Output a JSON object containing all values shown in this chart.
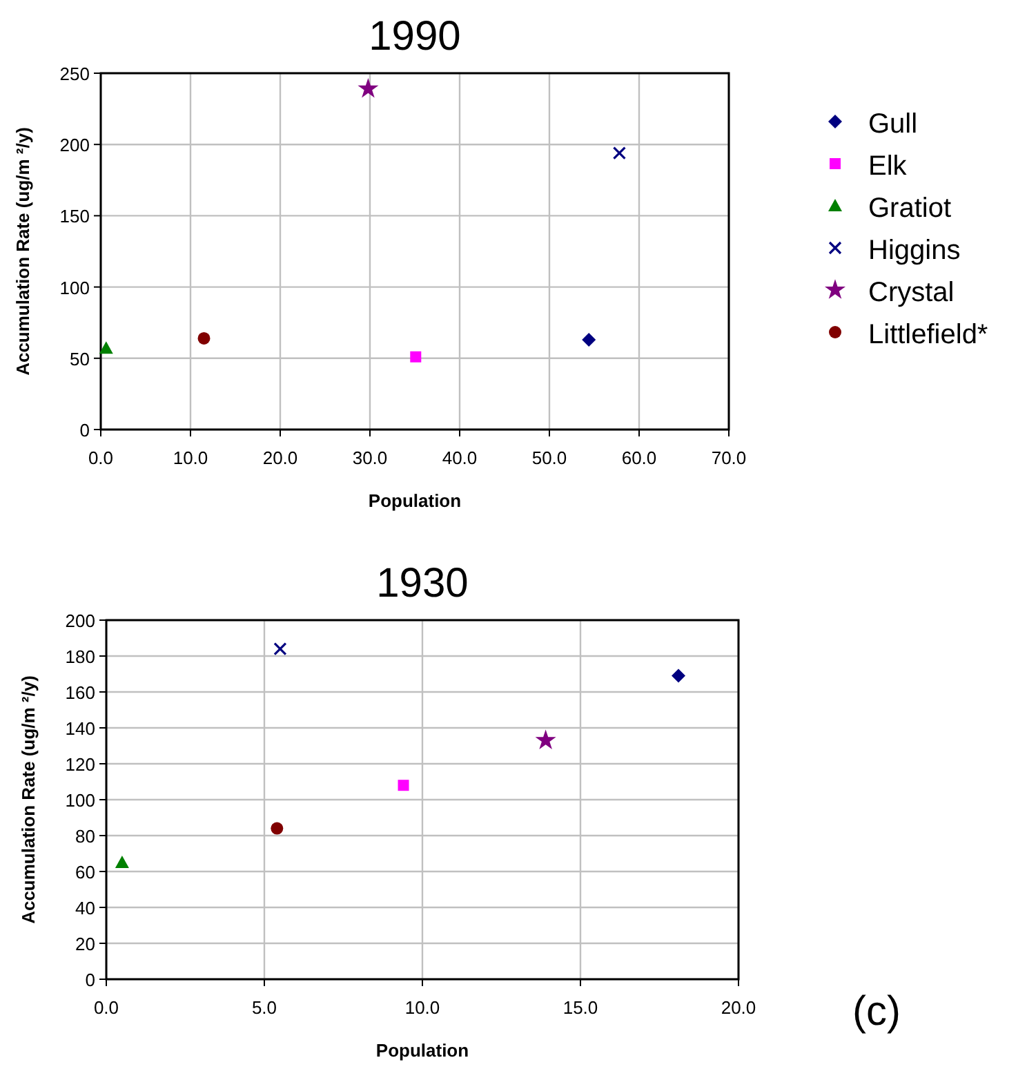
{
  "chart_data": [
    {
      "type": "scatter",
      "title": "1990",
      "xlabel": "Population",
      "ylabel": "Accumulation Rate (ug/m ²/y)",
      "xlim": [
        0,
        70
      ],
      "ylim": [
        0,
        250
      ],
      "xticks": [
        {
          "value": 0,
          "label": "0.0"
        },
        {
          "value": 10,
          "label": "10.0"
        },
        {
          "value": 20,
          "label": "20.0"
        },
        {
          "value": 30,
          "label": "30.0"
        },
        {
          "value": 40,
          "label": "40.0"
        },
        {
          "value": 50,
          "label": "50.0"
        },
        {
          "value": 60,
          "label": "60.0"
        },
        {
          "value": 70,
          "label": "70.0"
        }
      ],
      "yticks": [
        0,
        50,
        100,
        150,
        200,
        250
      ],
      "grid": true,
      "legend": "right",
      "series": [
        {
          "name": "Gull",
          "color": "#000080",
          "marker": "diamond",
          "x": [
            54.4
          ],
          "values": [
            63
          ]
        },
        {
          "name": "Elk",
          "color": "#ff00ff",
          "marker": "square",
          "x": [
            35.1
          ],
          "values": [
            51
          ]
        },
        {
          "name": "Gratiot",
          "color": "#008000",
          "marker": "triangle",
          "x": [
            0.6
          ],
          "values": [
            57
          ]
        },
        {
          "name": "Higgins",
          "color": "#000080",
          "marker": "cross",
          "x": [
            57.8
          ],
          "values": [
            194
          ]
        },
        {
          "name": "Crystal",
          "color": "#800080",
          "marker": "star",
          "x": [
            29.8
          ],
          "values": [
            239
          ]
        },
        {
          "name": "Littlefield*",
          "color": "#800000",
          "marker": "circle",
          "x": [
            11.5
          ],
          "values": [
            64
          ]
        }
      ]
    },
    {
      "type": "scatter",
      "title": "1930",
      "xlabel": "Population",
      "ylabel": "Accumulation Rate (ug/m ²/y)",
      "xlim": [
        0,
        20
      ],
      "ylim": [
        0,
        200
      ],
      "xticks": [
        {
          "value": 0,
          "label": "0.0"
        },
        {
          "value": 5,
          "label": "5.0"
        },
        {
          "value": 10,
          "label": "10.0"
        },
        {
          "value": 15,
          "label": "15.0"
        },
        {
          "value": 20,
          "label": "20.0"
        }
      ],
      "yticks": [
        0,
        20,
        40,
        60,
        80,
        100,
        120,
        140,
        160,
        180,
        200
      ],
      "grid": true,
      "annotations": [
        "(c)"
      ],
      "series": [
        {
          "color": "#000080",
          "marker": "diamond",
          "x": [
            18.1
          ],
          "values": [
            169
          ]
        },
        {
          "color": "#ff00ff",
          "marker": "square",
          "x": [
            9.4
          ],
          "values": [
            108
          ]
        },
        {
          "color": "#008000",
          "marker": "triangle",
          "x": [
            0.5
          ],
          "values": [
            65
          ]
        },
        {
          "color": "#000080",
          "marker": "cross",
          "x": [
            5.5
          ],
          "values": [
            184
          ]
        },
        {
          "color": "#800080",
          "marker": "star",
          "x": [
            13.9
          ],
          "values": [
            133
          ]
        },
        {
          "color": "#800000",
          "marker": "circle",
          "x": [
            5.4
          ],
          "values": [
            84
          ]
        }
      ]
    }
  ]
}
